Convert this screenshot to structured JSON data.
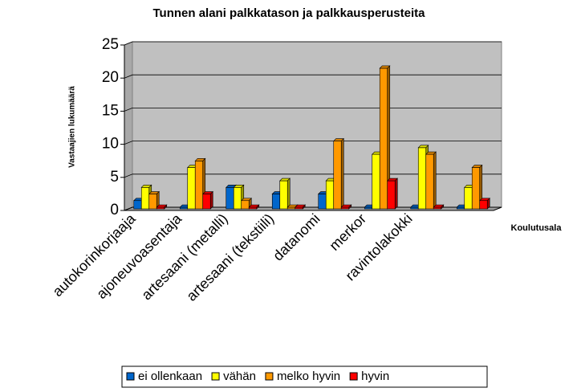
{
  "chart_data": {
    "type": "bar",
    "title": "Tunnen alani palkkatason ja palkkausperusteita",
    "y_label": "Vastaajien lukumäärä",
    "x_label": "Koulutusala",
    "categories": [
      "autokorinkorjaaja",
      "ajoneuvoasentaja",
      "artesaani (metalli)",
      "artesaani (tekstiili)",
      "datanomi",
      "merkor",
      "ravintolakokki",
      null
    ],
    "series": [
      {
        "name": "ei ollenkaan",
        "color": "#0066cc",
        "values": [
          1,
          0,
          3,
          2,
          2,
          0,
          0,
          0
        ]
      },
      {
        "name": "vähän",
        "color": "#ffff00",
        "values": [
          3,
          6,
          3,
          4,
          4,
          8,
          9,
          3
        ]
      },
      {
        "name": "melko hyvin",
        "color": "#ff9900",
        "values": [
          2,
          7,
          1,
          0,
          10,
          21,
          8,
          6
        ]
      },
      {
        "name": "hyvin",
        "color": "#ff0000",
        "values": [
          0,
          2,
          0,
          0,
          0,
          4,
          0,
          1
        ]
      }
    ],
    "ylim": [
      0,
      25
    ],
    "yticks": [
      0,
      5,
      10,
      15,
      20,
      25
    ],
    "grid": true,
    "legend": "bottom"
  }
}
